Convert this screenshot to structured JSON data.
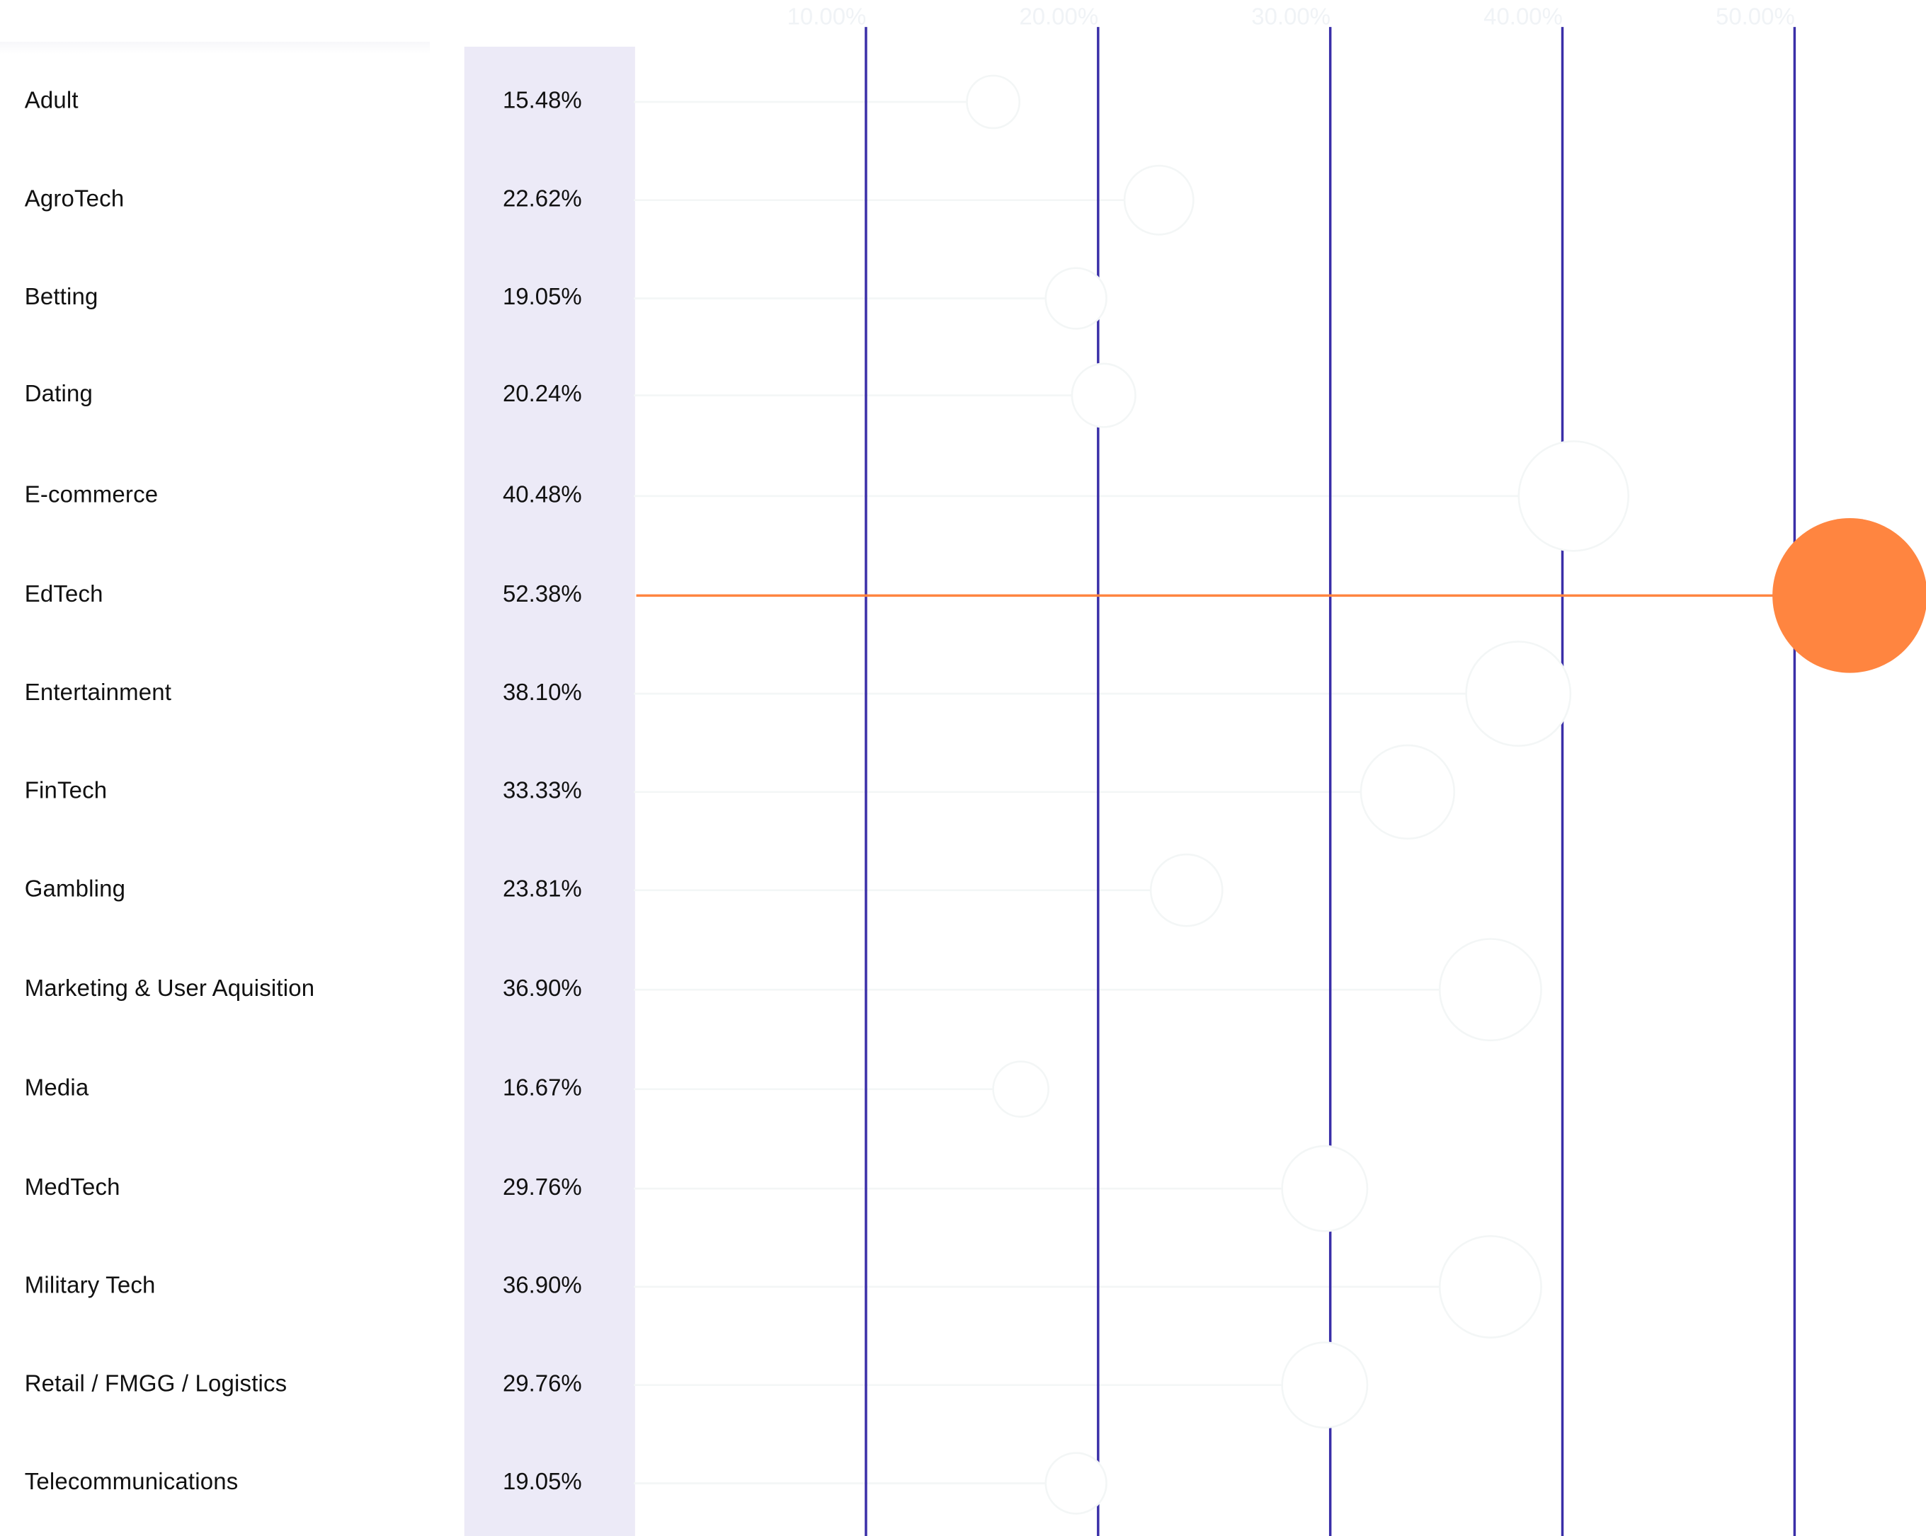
{
  "chart_data": {
    "type": "scatter",
    "categories": [
      "Adult",
      "AgroTech",
      "Betting",
      "Dating",
      "E-commerce",
      "EdTech",
      "Entertainment",
      "FinTech",
      "Gambling",
      "Marketing & User Aquisition",
      "Media",
      "MedTech",
      "Military Tech",
      "Retail / FMGG / Logistics",
      "Telecommunications"
    ],
    "values": [
      15.48,
      22.62,
      19.05,
      20.24,
      40.48,
      52.38,
      38.1,
      33.33,
      23.81,
      36.9,
      16.67,
      29.76,
      36.9,
      29.76,
      19.05
    ],
    "value_labels": [
      "15.48%",
      "22.62%",
      "19.05%",
      "20.24%",
      "40.48%",
      "52.38%",
      "38.10%",
      "33.33%",
      "23.81%",
      "36.90%",
      "16.67%",
      "29.76%",
      "36.90%",
      "29.76%",
      "19.05%"
    ],
    "highlighted": "EdTech",
    "x_ticks": [
      10,
      20,
      30,
      40,
      50
    ],
    "x_tick_labels": [
      "10.00%",
      "20.00%",
      "30.00%",
      "40.00%",
      "50.00%"
    ],
    "xlim": [
      0,
      50
    ],
    "grid": true,
    "colors": {
      "highlight": "#ff8540",
      "gridline": "#3a2fa8",
      "value_column": "#eceaf7",
      "faded": "#f3f6f6",
      "tick_label": "#f0f3f6"
    }
  }
}
